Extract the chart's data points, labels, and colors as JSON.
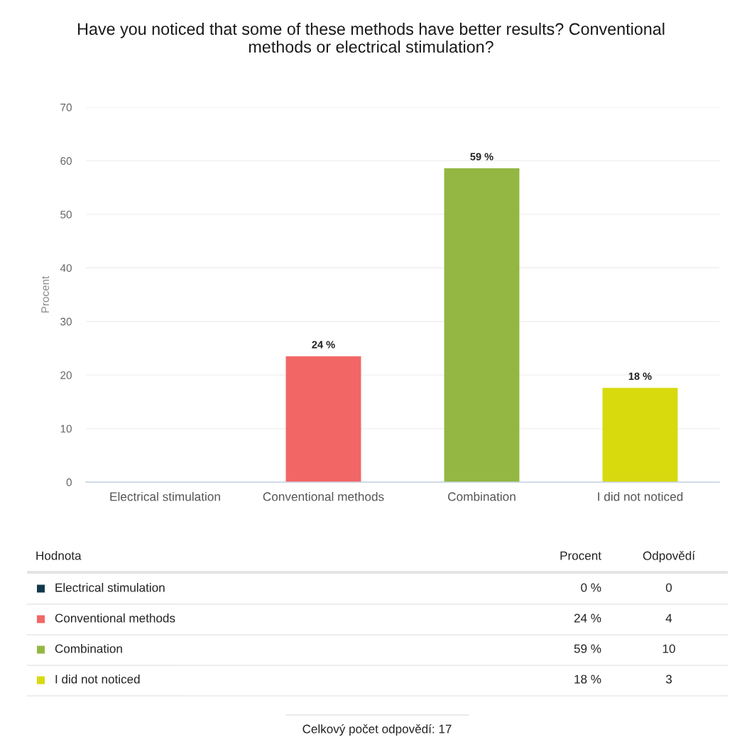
{
  "chart_data": [
    {
      "type": "bar",
      "title": "Have you noticed that some of these methods have better results? Conventional methods or electrical stimulation?",
      "ylabel": "Procent",
      "categories": [
        "Electrical stimulation",
        "Conventional methods",
        "Combination",
        "I did not noticed"
      ],
      "values": [
        0,
        23.5,
        58.6,
        17.6
      ],
      "colors": [
        "#12394a",
        "#f36666",
        "#93b742",
        "#d8da0e"
      ],
      "value_labels": [
        null,
        "24 %",
        "59 %",
        "18 %"
      ],
      "ylim": [
        0,
        70
      ],
      "yticks": [
        0,
        10,
        20,
        30,
        40,
        50,
        60,
        70
      ],
      "grid": "y"
    },
    {
      "type": "other",
      "legend_title": "Hodnota",
      "categories": [
        "Electrical stimulation",
        "Conventional methods",
        "Combination",
        "I did not noticed"
      ],
      "colors": [
        "#12394a",
        "#f36666",
        "#93b742",
        "#d8da0e"
      ],
      "series": [
        {
          "name": "Procent",
          "values": [
            0,
            24,
            59,
            18
          ],
          "value_labels": [
            "0 %",
            "24 %",
            "59 %",
            "18 %"
          ]
        },
        {
          "name": "Odpovědí",
          "values": [
            0,
            4,
            10,
            3
          ]
        }
      ],
      "data_labels": true,
      "annotations": [
        "Celkový počet odpovědí: 17"
      ]
    }
  ]
}
